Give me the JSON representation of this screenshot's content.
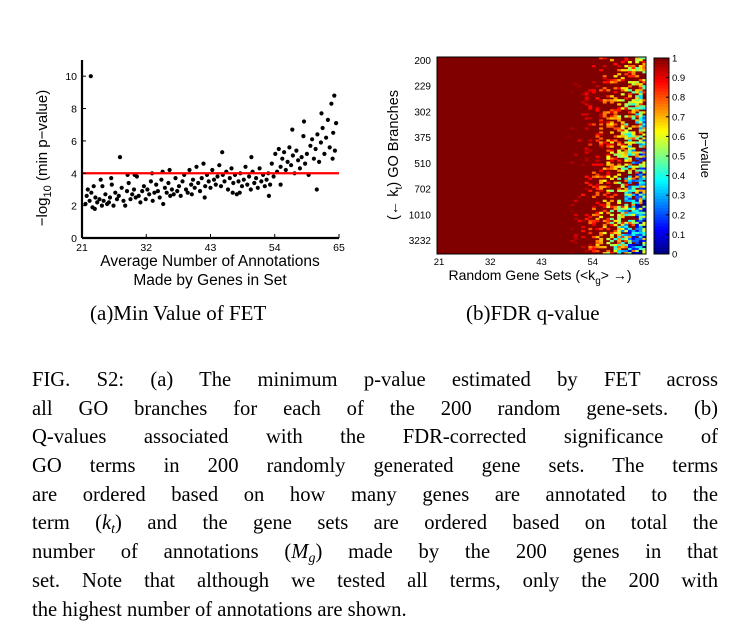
{
  "chart_data": [
    {
      "type": "scatter",
      "ylabel_parts": {
        "prefix": "−log",
        "sub": "10",
        "suffix": " (min p−value)"
      },
      "xlabel_lines": [
        "Average Number of Annotations",
        "Made by Genes in Set"
      ],
      "xlim": [
        21,
        65
      ],
      "ylim": [
        0,
        11
      ],
      "xticks": [
        "21",
        "32",
        "43",
        "54",
        "65"
      ],
      "yticks": [
        "0",
        "2",
        "4",
        "6",
        "8",
        "10"
      ],
      "threshold_line": {
        "y": 4.0,
        "color": "#ff0000"
      },
      "points": [
        [
          22.5,
          10.0
        ],
        [
          21.6,
          2.1
        ],
        [
          21.8,
          2.6
        ],
        [
          22.0,
          3.0
        ],
        [
          22.3,
          2.3
        ],
        [
          22.6,
          2.8
        ],
        [
          22.8,
          1.9
        ],
        [
          23.0,
          3.2
        ],
        [
          23.3,
          2.5
        ],
        [
          23.6,
          2.2
        ],
        [
          24.0,
          2.4
        ],
        [
          24.2,
          3.6
        ],
        [
          24.4,
          2.0
        ],
        [
          24.7,
          2.3
        ],
        [
          25.0,
          2.7
        ],
        [
          25.3,
          2.1
        ],
        [
          25.6,
          2.2
        ],
        [
          25.8,
          2.5
        ],
        [
          26.1,
          3.3
        ],
        [
          26.4,
          2.0
        ],
        [
          26.7,
          2.8
        ],
        [
          27.0,
          2.4
        ],
        [
          27.3,
          2.6
        ],
        [
          27.5,
          5.0
        ],
        [
          27.8,
          3.1
        ],
        [
          28.1,
          2.3
        ],
        [
          28.4,
          2.0
        ],
        [
          28.7,
          2.9
        ],
        [
          29.0,
          3.4
        ],
        [
          29.3,
          2.4
        ],
        [
          29.6,
          2.7
        ],
        [
          29.9,
          3.0
        ],
        [
          30.2,
          2.5
        ],
        [
          30.4,
          3.8
        ],
        [
          30.7,
          2.6
        ],
        [
          31.0,
          2.2
        ],
        [
          31.3,
          2.9
        ],
        [
          31.6,
          3.2
        ],
        [
          31.9,
          2.4
        ],
        [
          32.2,
          3.0
        ],
        [
          32.5,
          2.7
        ],
        [
          32.8,
          3.5
        ],
        [
          33.1,
          2.3
        ],
        [
          33.4,
          2.8
        ],
        [
          33.7,
          3.3
        ],
        [
          34.0,
          2.9
        ],
        [
          34.3,
          2.5
        ],
        [
          34.6,
          3.6
        ],
        [
          34.9,
          2.1
        ],
        [
          35.2,
          3.1
        ],
        [
          35.5,
          2.8
        ],
        [
          35.8,
          3.4
        ],
        [
          36.1,
          2.6
        ],
        [
          36.4,
          3.0
        ],
        [
          36.7,
          2.7
        ],
        [
          37.0,
          3.7
        ],
        [
          37.3,
          2.9
        ],
        [
          37.6,
          3.2
        ],
        [
          37.9,
          2.6
        ],
        [
          38.2,
          3.5
        ],
        [
          38.5,
          3.9
        ],
        [
          38.8,
          3.0
        ],
        [
          39.1,
          2.8
        ],
        [
          39.4,
          4.2
        ],
        [
          39.7,
          3.3
        ],
        [
          40.0,
          3.6
        ],
        [
          40.3,
          3.1
        ],
        [
          40.6,
          4.4
        ],
        [
          40.9,
          3.4
        ],
        [
          41.2,
          2.9
        ],
        [
          41.5,
          3.7
        ],
        [
          41.8,
          4.6
        ],
        [
          42.1,
          3.2
        ],
        [
          42.4,
          3.9
        ],
        [
          42.7,
          3.5
        ],
        [
          43.0,
          3.1
        ],
        [
          43.3,
          4.2
        ],
        [
          43.6,
          3.6
        ],
        [
          43.9,
          3.3
        ],
        [
          44.2,
          3.8
        ],
        [
          44.5,
          4.5
        ],
        [
          44.8,
          3.2
        ],
        [
          45.1,
          3.9
        ],
        [
          45.4,
          3.5
        ],
        [
          45.7,
          4.1
        ],
        [
          46.0,
          3.0
        ],
        [
          46.3,
          3.7
        ],
        [
          46.6,
          4.3
        ],
        [
          46.9,
          3.4
        ],
        [
          47.2,
          3.9
        ],
        [
          47.5,
          2.7
        ],
        [
          47.8,
          3.5
        ],
        [
          48.1,
          4.0
        ],
        [
          48.4,
          3.2
        ],
        [
          48.7,
          3.6
        ],
        [
          49.0,
          4.4
        ],
        [
          49.3,
          3.3
        ],
        [
          49.6,
          3.8
        ],
        [
          49.9,
          3.0
        ],
        [
          50.2,
          4.1
        ],
        [
          50.5,
          3.4
        ],
        [
          50.8,
          3.7
        ],
        [
          51.1,
          3.1
        ],
        [
          51.4,
          4.3
        ],
        [
          51.7,
          3.5
        ],
        [
          52.0,
          3.9
        ],
        [
          52.3,
          3.2
        ],
        [
          52.6,
          3.6
        ],
        [
          52.9,
          4.0
        ],
        [
          53.2,
          3.3
        ],
        [
          53.5,
          4.6
        ],
        [
          53.8,
          3.8
        ],
        [
          54.1,
          5.2
        ],
        [
          54.4,
          4.1
        ],
        [
          54.7,
          5.5
        ],
        [
          55.0,
          4.4
        ],
        [
          55.3,
          4.9
        ],
        [
          55.6,
          5.3
        ],
        [
          55.9,
          4.2
        ],
        [
          56.2,
          4.7
        ],
        [
          56.5,
          5.6
        ],
        [
          56.8,
          4.5
        ],
        [
          57.1,
          5.1
        ],
        [
          57.4,
          4.0
        ],
        [
          57.7,
          5.4
        ],
        [
          58.0,
          4.8
        ],
        [
          58.3,
          4.3
        ],
        [
          58.6,
          5.0
        ],
        [
          58.9,
          6.3
        ],
        [
          59.2,
          4.6
        ],
        [
          59.5,
          5.2
        ],
        [
          59.8,
          3.9
        ],
        [
          60.1,
          5.7
        ],
        [
          60.4,
          6.1
        ],
        [
          60.7,
          4.9
        ],
        [
          61.0,
          5.5
        ],
        [
          61.3,
          6.4
        ],
        [
          61.6,
          4.7
        ],
        [
          61.9,
          5.9
        ],
        [
          62.2,
          6.8
        ],
        [
          62.5,
          5.2
        ],
        [
          62.8,
          6.2
        ],
        [
          63.1,
          7.3
        ],
        [
          63.4,
          5.6
        ],
        [
          63.7,
          8.3
        ],
        [
          64.0,
          6.5
        ],
        [
          64.3,
          5.4
        ],
        [
          64.5,
          7.1
        ],
        [
          64.2,
          8.8
        ],
        [
          63.9,
          4.9
        ],
        [
          62.0,
          7.7
        ],
        [
          61.2,
          3.0
        ],
        [
          59.0,
          7.2
        ],
        [
          57.0,
          6.7
        ],
        [
          55.0,
          3.3
        ],
        [
          50.0,
          5.0
        ],
        [
          48.0,
          2.8
        ],
        [
          45.0,
          5.3
        ],
        [
          42.0,
          2.5
        ],
        [
          36.0,
          4.2
        ],
        [
          33.0,
          4.0
        ],
        [
          30.0,
          3.9
        ],
        [
          26.0,
          3.7
        ],
        [
          24.5,
          3.2
        ],
        [
          23.2,
          1.8
        ],
        [
          28.8,
          3.9
        ],
        [
          34.8,
          4.1
        ],
        [
          39.8,
          2.7
        ],
        [
          46.8,
          2.8
        ],
        [
          53.0,
          2.6
        ]
      ]
    },
    {
      "type": "heatmap",
      "ylabel_parts": {
        "prefix": "(← k",
        "sub": "t",
        "suffix": ") GO Branches"
      },
      "xlabel_parts": {
        "prefix": "Random Gene Sets (<k",
        "sub": "g",
        "suffix": "> →)"
      },
      "xticks": [
        "21",
        "32",
        "43",
        "54",
        "65"
      ],
      "yticks": [
        "200",
        "229",
        "302",
        "375",
        "510",
        "702",
        "1010",
        "3232"
      ],
      "colorbar": {
        "label": "p−value",
        "ticks": [
          "0",
          "0.1",
          "0.2",
          "0.3",
          "0.4",
          "0.5",
          "0.6",
          "0.7",
          "0.8",
          "0.9",
          "1"
        ],
        "min": 0,
        "max": 1
      },
      "rows": 200,
      "cols": 200,
      "dominant_value": 1.0,
      "description_of_values": "q-values near 1 for most cells; lower values concentrate at high annotation counts (right side), especially bottom-right"
    }
  ],
  "subcaptions": {
    "a": "(a)Min Value of FET",
    "b": "(b)FDR q-value"
  },
  "caption_lines": [
    "FIG. S2: (a) The minimum p-value estimated by FET across",
    "all GO branches for each of the 200 random gene-sets. (b)",
    "Q-values associated with the FDR-corrected significance of",
    "GO terms in 200 randomly generated gene sets. The terms",
    "are ordered based on how many genes are annotated to the",
    "term (|k_t|) and the gene sets are ordered based on total the",
    "number of annotations (|M_g|) made by the 200 genes in that",
    "set. Note that although we tested all terms, only the 200 with",
    "the highest number of annotations are shown."
  ]
}
